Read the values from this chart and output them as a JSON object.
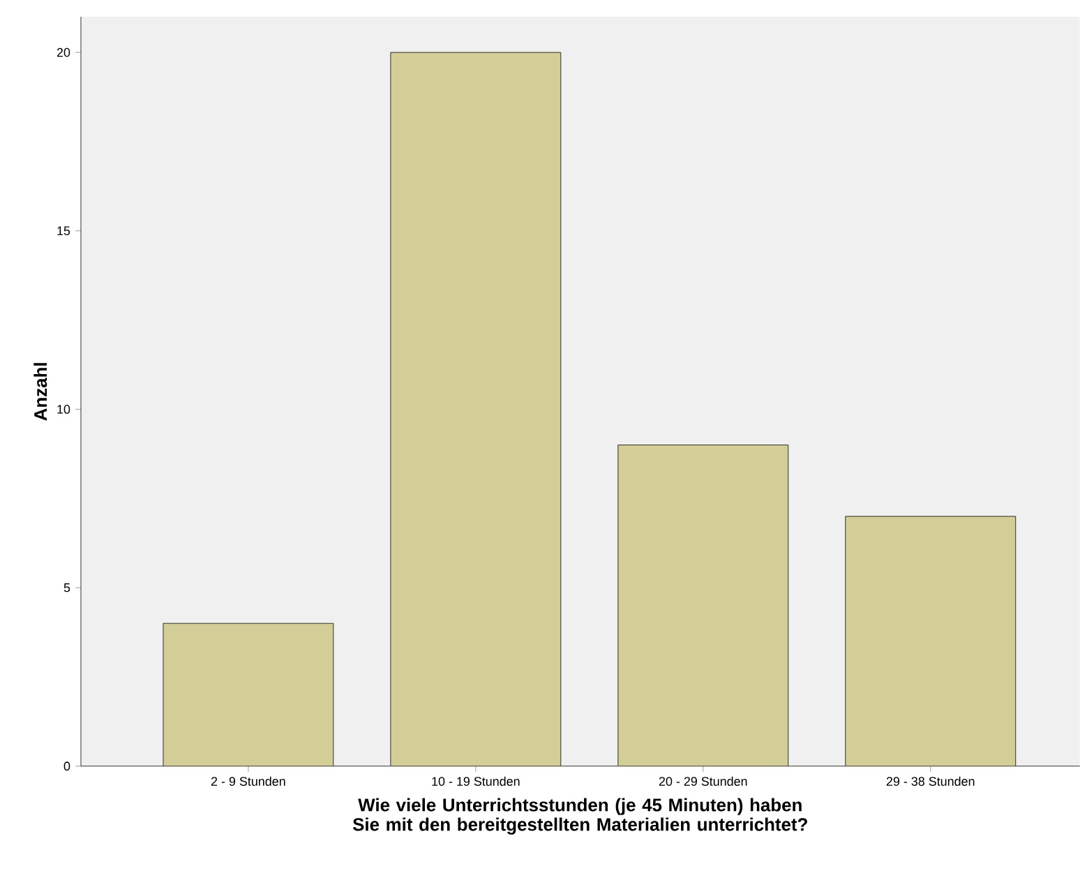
{
  "chart_data": {
    "type": "bar",
    "xlabel": "Wie viele Unterrichtsstunden (je 45 Minuten) haben Sie mit den bereitgestellten Materialien unterrichtet?",
    "ylabel": "Anzahl",
    "categories": [
      "2 - 9 Stunden",
      "10 - 19 Stunden",
      "20 - 29 Stunden",
      "29 - 38 Stunden"
    ],
    "values": [
      4,
      20,
      9,
      7
    ],
    "color": "#d3ce97",
    "ylim": [
      0,
      21
    ],
    "yticks": [
      0,
      5,
      10,
      15,
      20
    ],
    "grid": false
  }
}
